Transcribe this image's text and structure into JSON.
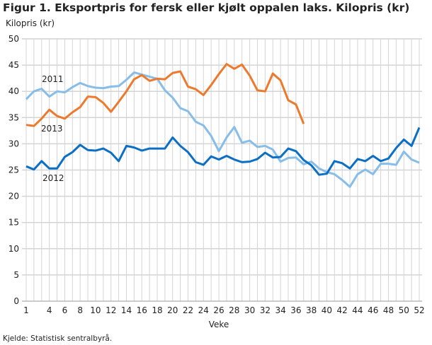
{
  "chart_data": {
    "type": "line",
    "title": "Figur 1. Eksportpris for fersk eller kjølt oppalen laks. Kilopris (kr)",
    "ylabel": "Kilopris (kr)",
    "xlabel": "Veke",
    "ylim": [
      0,
      50
    ],
    "yticks": [
      0,
      5,
      10,
      15,
      20,
      25,
      30,
      35,
      40,
      45,
      50
    ],
    "xlim": [
      1,
      52
    ],
    "xticks": [
      1,
      4,
      6,
      8,
      10,
      12,
      14,
      16,
      18,
      20,
      22,
      24,
      26,
      28,
      30,
      32,
      34,
      36,
      38,
      40,
      42,
      44,
      46,
      48,
      50,
      52
    ],
    "grid": true,
    "series": [
      {
        "name": "2011",
        "color": "#86bde9",
        "values": [
          38.5,
          40,
          40.5,
          39,
          40,
          39.8,
          40.8,
          41.6,
          41,
          40.7,
          40.6,
          40.9,
          41,
          42.2,
          43.6,
          43.2,
          42.8,
          42.4,
          40.2,
          38.8,
          36.8,
          36.2,
          34.2,
          33.5,
          31.5,
          28.6,
          31.2,
          33.2,
          30.2,
          30.6,
          29.4,
          29.6,
          28.9,
          26.6,
          27.3,
          27.4,
          26.1,
          26.6,
          25.3,
          24.6,
          24.2,
          23.1,
          21.8,
          24.2,
          25.1,
          24.2,
          26.2,
          26.2,
          26,
          28.5,
          27,
          26.4
        ]
      },
      {
        "name": "2012",
        "color": "#0b6fc6",
        "values": [
          25.7,
          25.1,
          26.7,
          25.3,
          25.3,
          27.5,
          28.4,
          29.8,
          28.8,
          28.7,
          29.1,
          28.3,
          26.7,
          29.6,
          29.3,
          28.7,
          29.1,
          29.1,
          29.1,
          31.2,
          29.6,
          28.4,
          26.5,
          26,
          27.6,
          27,
          27.7,
          27,
          26.5,
          26.6,
          27.1,
          28.3,
          27.4,
          27.5,
          29.1,
          28.6,
          26.9,
          25.9,
          24.1,
          24.3,
          26.7,
          26.3,
          25.3,
          27.1,
          26.7,
          27.7,
          26.7,
          27.2,
          29.2,
          30.8,
          29.6,
          33.1
        ]
      },
      {
        "name": "2013",
        "color": "#ed7a2c",
        "values": [
          33.6,
          33.4,
          34.8,
          36.5,
          35.3,
          34.8,
          36,
          37,
          39,
          38.9,
          37.8,
          36.1,
          38,
          40,
          42.3,
          43.1,
          42,
          42.4,
          42.3,
          43.5,
          43.8,
          40.9,
          40.4,
          39.3,
          41.2,
          43.3,
          45.2,
          44.3,
          45.1,
          43,
          40.2,
          40,
          43.4,
          42.1,
          38.3,
          37.5,
          33.8
        ]
      }
    ]
  },
  "source": "Kjelde: Statistisk sentralbyrå."
}
